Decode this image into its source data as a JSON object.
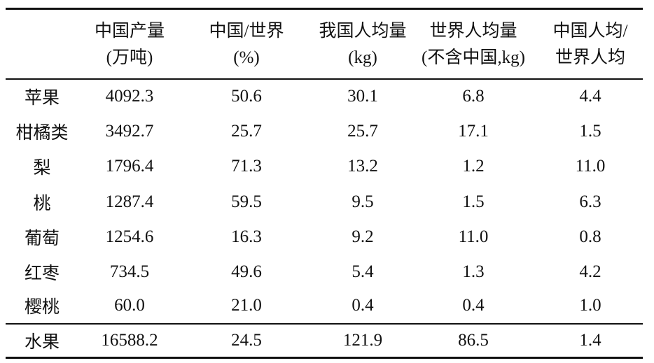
{
  "table": {
    "header": [
      [
        "中国产量",
        "(万吨)"
      ],
      [
        "中国/世界",
        "(%)"
      ],
      [
        "我国人均量",
        "(kg)"
      ],
      [
        "世界人均量",
        "(不含中国,kg)"
      ],
      [
        "中国人均/",
        "世界人均"
      ]
    ],
    "rows": [
      [
        "苹果",
        "4092.3",
        "50.6",
        "30.1",
        "6.8",
        "4.4"
      ],
      [
        "柑橘类",
        "3492.7",
        "25.7",
        "25.7",
        "17.1",
        "1.5"
      ],
      [
        "梨",
        "1796.4",
        "71.3",
        "13.2",
        "1.2",
        "11.0"
      ],
      [
        "桃",
        "1287.4",
        "59.5",
        "9.5",
        "1.5",
        "6.3"
      ],
      [
        "葡萄",
        "1254.6",
        "16.3",
        "9.2",
        "11.0",
        "0.8"
      ],
      [
        "红枣",
        "734.5",
        "49.6",
        "5.4",
        "1.3",
        "4.2"
      ],
      [
        "樱桃",
        "60.0",
        "21.0",
        "0.4",
        "0.4",
        "1.0"
      ]
    ],
    "total": [
      "水果",
      "16588.2",
      "24.5",
      "121.9",
      "86.5",
      "1.4"
    ]
  }
}
